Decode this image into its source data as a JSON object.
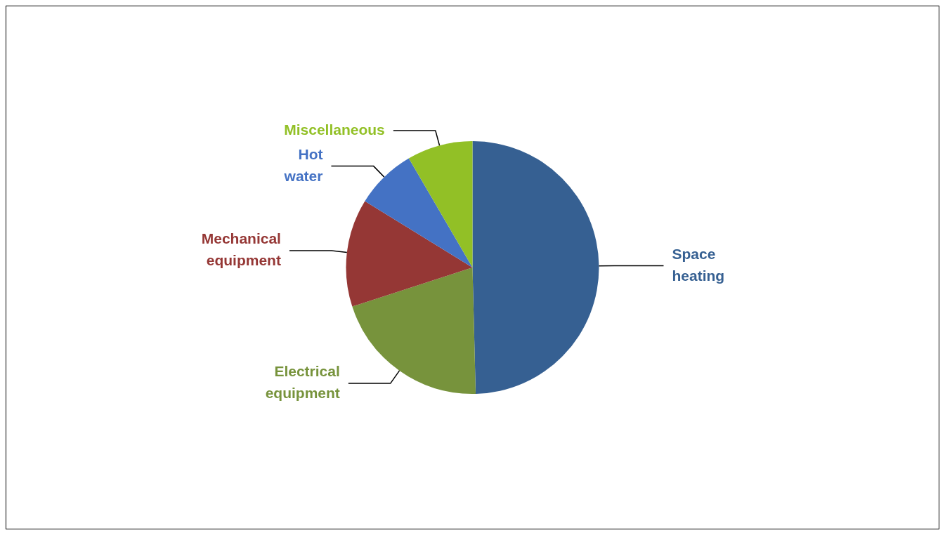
{
  "chart_data": {
    "type": "pie",
    "categories": [
      "Space heating",
      "Electrical equipment",
      "Mechanical equipment",
      "Hot water",
      "Miscellaneous"
    ],
    "values": [
      49.6,
      20.4,
      13.8,
      7.8,
      8.4
    ],
    "colors": [
      "#366092",
      "#77933c",
      "#953735",
      "#4472c4",
      "#92c026"
    ]
  }
}
